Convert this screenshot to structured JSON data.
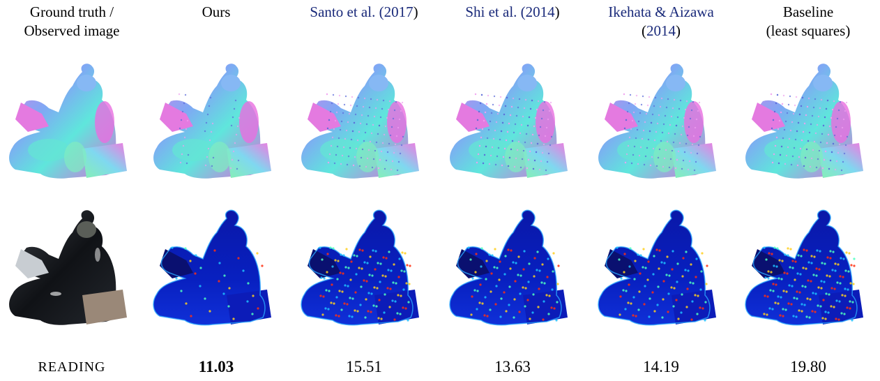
{
  "figure": {
    "columns": [
      {
        "id": "ground-truth",
        "header_lines": [
          {
            "parts": [
              {
                "text": "Ground truth /",
                "cite": false
              }
            ]
          },
          {
            "parts": [
              {
                "text": "Observed image",
                "cite": false
              }
            ]
          }
        ],
        "footer": "READING",
        "footer_style": "smallcaps",
        "normal_map": "ground-truth-normal",
        "bottom_image": "observed-image"
      },
      {
        "id": "ours",
        "header_lines": [
          {
            "parts": [
              {
                "text": "Ours",
                "cite": false
              }
            ]
          }
        ],
        "footer": "11.03",
        "footer_style": "bold",
        "normal_map": "ours-normal",
        "bottom_image": "ours-error"
      },
      {
        "id": "santo",
        "header_lines": [
          {
            "parts": [
              {
                "text": "Santo et al. (",
                "cite": true
              },
              {
                "text": "2017",
                "cite": true
              },
              {
                "text": ")",
                "cite": false
              }
            ]
          }
        ],
        "footer": "15.51",
        "footer_style": "normal",
        "normal_map": "santo-normal",
        "bottom_image": "santo-error"
      },
      {
        "id": "shi",
        "header_lines": [
          {
            "parts": [
              {
                "text": "Shi et al. (",
                "cite": true
              },
              {
                "text": "2014",
                "cite": true
              },
              {
                "text": ")",
                "cite": false
              }
            ]
          }
        ],
        "footer": "13.63",
        "footer_style": "normal",
        "normal_map": "shi-normal",
        "bottom_image": "shi-error"
      },
      {
        "id": "ikehata",
        "header_lines": [
          {
            "parts": [
              {
                "text": "Ikehata & Aizawa",
                "cite": true
              }
            ]
          },
          {
            "parts": [
              {
                "text": "(",
                "cite": false
              },
              {
                "text": "2014",
                "cite": true
              },
              {
                "text": ")",
                "cite": false
              }
            ]
          }
        ],
        "footer": "14.19",
        "footer_style": "normal",
        "normal_map": "ikehata-normal",
        "bottom_image": "ikehata-error"
      },
      {
        "id": "baseline",
        "header_lines": [
          {
            "parts": [
              {
                "text": "Baseline",
                "cite": false
              }
            ]
          },
          {
            "parts": [
              {
                "text": "(least squares)",
                "cite": false
              }
            ]
          }
        ],
        "footer": "19.80",
        "footer_style": "normal",
        "normal_map": "baseline-normal",
        "bottom_image": "baseline-error"
      }
    ],
    "colors": {
      "citation": "#1a2a7a",
      "normal_magenta": "#e070e8",
      "normal_cyan": "#60e8e0",
      "normal_blue": "#7090f0",
      "normal_green": "#80f0b0",
      "error_low": "#0a1aa0",
      "error_mid": "#20c0ff",
      "error_high": "#ff3010",
      "observed_dark": "#15181c",
      "observed_base": "#9a8878"
    }
  }
}
